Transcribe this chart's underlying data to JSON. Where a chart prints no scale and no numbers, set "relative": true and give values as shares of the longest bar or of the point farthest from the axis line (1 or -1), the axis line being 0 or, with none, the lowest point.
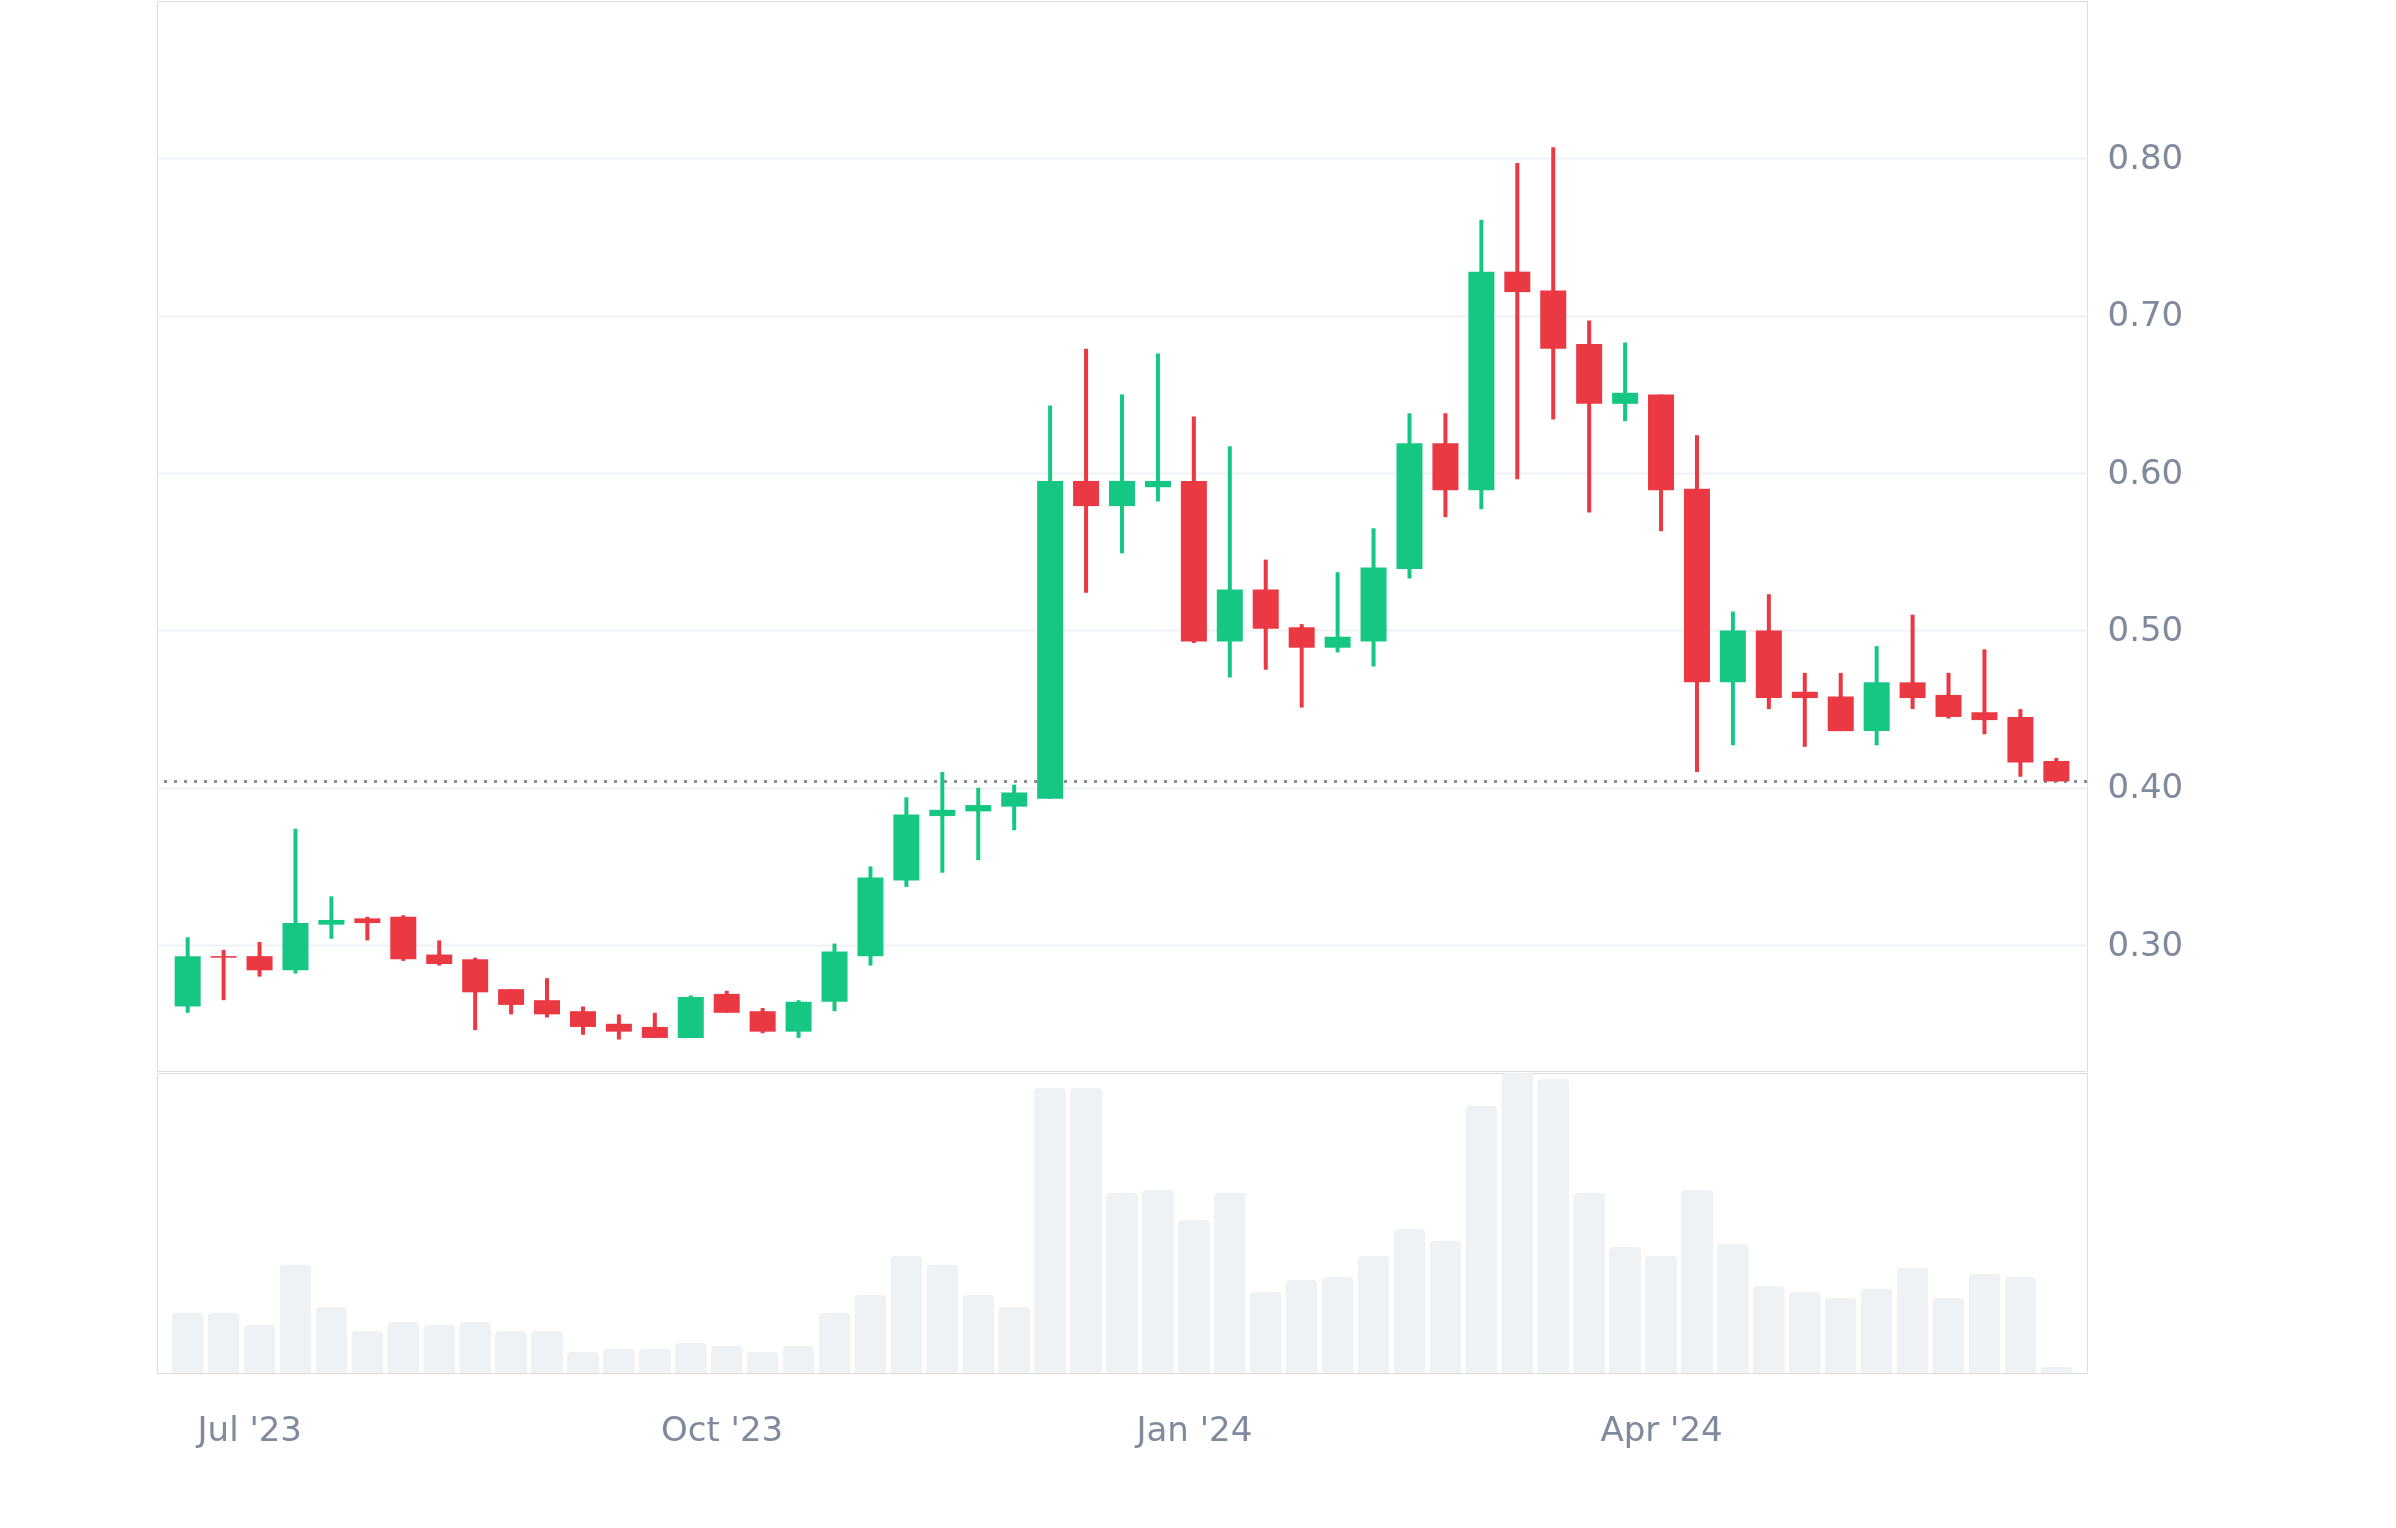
{
  "chart_data": [
    {
      "type": "candlestick",
      "x": [
        "2023-06-19",
        "2023-06-26",
        "2023-07-03",
        "2023-07-10",
        "2023-07-17",
        "2023-07-24",
        "2023-07-31",
        "2023-08-07",
        "2023-08-14",
        "2023-08-21",
        "2023-08-28",
        "2023-09-04",
        "2023-09-11",
        "2023-09-18",
        "2023-09-25",
        "2023-10-02",
        "2023-10-09",
        "2023-10-16",
        "2023-10-23",
        "2023-10-30",
        "2023-11-06",
        "2023-11-13",
        "2023-11-20",
        "2023-11-27",
        "2023-12-04",
        "2023-12-11",
        "2023-12-18",
        "2023-12-25",
        "2024-01-01",
        "2024-01-08",
        "2024-01-15",
        "2024-01-22",
        "2024-01-29",
        "2024-02-05",
        "2024-02-12",
        "2024-02-19",
        "2024-02-26",
        "2024-03-04",
        "2024-03-11",
        "2024-03-18",
        "2024-03-25",
        "2024-04-01",
        "2024-04-08",
        "2024-04-15",
        "2024-04-22",
        "2024-04-29",
        "2024-05-06",
        "2024-05-13",
        "2024-05-20",
        "2024-05-27",
        "2024-06-03",
        "2024-06-10",
        "2024-06-17"
      ],
      "ohlc": [
        [
          0.261,
          0.305,
          0.257,
          0.293
        ],
        [
          0.293,
          0.297,
          0.265,
          0.292
        ],
        [
          0.293,
          0.302,
          0.28,
          0.284
        ],
        [
          0.284,
          0.374,
          0.282,
          0.314
        ],
        [
          0.313,
          0.331,
          0.304,
          0.316
        ],
        [
          0.317,
          0.318,
          0.303,
          0.314
        ],
        [
          0.318,
          0.319,
          0.29,
          0.291
        ],
        [
          0.294,
          0.303,
          0.287,
          0.288
        ],
        [
          0.291,
          0.292,
          0.246,
          0.27
        ],
        [
          0.272,
          0.272,
          0.256,
          0.262
        ],
        [
          0.265,
          0.279,
          0.254,
          0.256
        ],
        [
          0.258,
          0.261,
          0.243,
          0.248
        ],
        [
          0.25,
          0.256,
          0.24,
          0.245
        ],
        [
          0.248,
          0.257,
          0.241,
          0.241
        ],
        [
          0.241,
          0.268,
          0.241,
          0.267
        ],
        [
          0.269,
          0.271,
          0.257,
          0.257
        ],
        [
          0.258,
          0.26,
          0.244,
          0.245
        ],
        [
          0.245,
          0.265,
          0.241,
          0.264
        ],
        [
          0.264,
          0.301,
          0.258,
          0.296
        ],
        [
          0.293,
          0.35,
          0.287,
          0.343
        ],
        [
          0.341,
          0.394,
          0.337,
          0.383
        ],
        [
          0.382,
          0.41,
          0.346,
          0.386
        ],
        [
          0.385,
          0.4,
          0.354,
          0.389
        ],
        [
          0.388,
          0.402,
          0.373,
          0.397
        ],
        [
          0.393,
          0.643,
          0.393,
          0.595
        ],
        [
          0.595,
          0.679,
          0.524,
          0.579
        ],
        [
          0.579,
          0.65,
          0.549,
          0.595
        ],
        [
          0.591,
          0.676,
          0.582,
          0.595
        ],
        [
          0.595,
          0.636,
          0.492,
          0.493
        ],
        [
          0.493,
          0.617,
          0.47,
          0.526
        ],
        [
          0.526,
          0.545,
          0.475,
          0.501
        ],
        [
          0.502,
          0.504,
          0.451,
          0.489
        ],
        [
          0.489,
          0.537,
          0.486,
          0.496
        ],
        [
          0.493,
          0.565,
          0.477,
          0.54
        ],
        [
          0.539,
          0.638,
          0.533,
          0.619
        ],
        [
          0.619,
          0.638,
          0.572,
          0.589
        ],
        [
          0.589,
          0.761,
          0.577,
          0.728
        ],
        [
          0.728,
          0.797,
          0.596,
          0.715
        ],
        [
          0.716,
          0.807,
          0.634,
          0.679
        ],
        [
          0.682,
          0.697,
          0.575,
          0.644
        ],
        [
          0.644,
          0.683,
          0.633,
          0.651
        ],
        [
          0.65,
          0.65,
          0.563,
          0.589
        ],
        [
          0.59,
          0.624,
          0.41,
          0.467
        ],
        [
          0.467,
          0.512,
          0.427,
          0.5
        ],
        [
          0.5,
          0.523,
          0.45,
          0.457
        ],
        [
          0.461,
          0.473,
          0.426,
          0.457
        ],
        [
          0.458,
          0.473,
          0.436,
          0.436
        ],
        [
          0.436,
          0.49,
          0.427,
          0.467
        ],
        [
          0.467,
          0.51,
          0.45,
          0.457
        ],
        [
          0.459,
          0.473,
          0.444,
          0.445
        ],
        [
          0.448,
          0.488,
          0.434,
          0.443
        ],
        [
          0.445,
          0.45,
          0.407,
          0.416
        ],
        [
          0.417,
          0.419,
          0.404,
          0.404
        ]
      ],
      "colors": [
        "#16c784",
        "#ea3943",
        "#ea3943",
        "#16c784",
        "#16c784",
        "#ea3943",
        "#ea3943",
        "#ea3943",
        "#ea3943",
        "#ea3943",
        "#ea3943",
        "#ea3943",
        "#ea3943",
        "#ea3943",
        "#16c784",
        "#ea3943",
        "#ea3943",
        "#16c784",
        "#16c784",
        "#16c784",
        "#16c784",
        "#16c784",
        "#16c784",
        "#16c784",
        "#16c784",
        "#ea3943",
        "#16c784",
        "#16c784",
        "#ea3943",
        "#16c784",
        "#ea3943",
        "#ea3943",
        "#16c784",
        "#16c784",
        "#16c784",
        "#ea3943",
        "#16c784",
        "#ea3943",
        "#ea3943",
        "#ea3943",
        "#16c784",
        "#ea3943",
        "#ea3943",
        "#16c784",
        "#ea3943",
        "#ea3943",
        "#ea3943",
        "#16c784",
        "#ea3943",
        "#ea3943",
        "#ea3943",
        "#ea3943",
        "#ea3943"
      ],
      "xlim": [
        "2023-06-14",
        "2024-06-22"
      ],
      "ylim": [
        0.22,
        0.9
      ],
      "yticks": [
        {
          "value": 0.3,
          "label": "0.30"
        },
        {
          "value": 0.4,
          "label": "0.40"
        },
        {
          "value": 0.5,
          "label": "0.50"
        },
        {
          "value": 0.6,
          "label": "0.60"
        },
        {
          "value": 0.7,
          "label": "0.70"
        },
        {
          "value": 0.8,
          "label": "0.80"
        }
      ],
      "tick_labels": "y",
      "grid": "y",
      "ref_lines": [
        {
          "axis": "y",
          "value": 0.404,
          "color": "#8a8f98",
          "line_style": "dotted"
        }
      ]
    },
    {
      "type": "bar",
      "relative": true,
      "color": "#eff2f5",
      "x": [
        "2023-06-19",
        "2023-06-26",
        "2023-07-03",
        "2023-07-10",
        "2023-07-17",
        "2023-07-24",
        "2023-07-31",
        "2023-08-07",
        "2023-08-14",
        "2023-08-21",
        "2023-08-28",
        "2023-09-04",
        "2023-09-11",
        "2023-09-18",
        "2023-09-25",
        "2023-10-02",
        "2023-10-09",
        "2023-10-16",
        "2023-10-23",
        "2023-10-30",
        "2023-11-06",
        "2023-11-13",
        "2023-11-20",
        "2023-11-27",
        "2023-12-04",
        "2023-12-11",
        "2023-12-18",
        "2023-12-25",
        "2024-01-01",
        "2024-01-08",
        "2024-01-15",
        "2024-01-22",
        "2024-01-29",
        "2024-02-05",
        "2024-02-12",
        "2024-02-19",
        "2024-02-26",
        "2024-03-04",
        "2024-03-11",
        "2024-03-18",
        "2024-03-25",
        "2024-04-01",
        "2024-04-08",
        "2024-04-15",
        "2024-04-22",
        "2024-04-29",
        "2024-05-06",
        "2024-05-13",
        "2024-05-20",
        "2024-05-27",
        "2024-06-03",
        "2024-06-10",
        "2024-06-17"
      ],
      "values": [
        0.2,
        0.2,
        0.16,
        0.36,
        0.22,
        0.14,
        0.17,
        0.16,
        0.17,
        0.14,
        0.14,
        0.07,
        0.08,
        0.08,
        0.1,
        0.09,
        0.07,
        0.09,
        0.2,
        0.26,
        0.39,
        0.36,
        0.26,
        0.22,
        0.95,
        0.95,
        0.6,
        0.61,
        0.51,
        0.6,
        0.27,
        0.31,
        0.32,
        0.39,
        0.48,
        0.44,
        0.89,
        1.0,
        0.98,
        0.6,
        0.42,
        0.39,
        0.61,
        0.43,
        0.29,
        0.27,
        0.25,
        0.28,
        0.35,
        0.25,
        0.33,
        0.32,
        0.02
      ],
      "xlim": [
        "2023-06-14",
        "2024-06-22"
      ],
      "xticks": [
        {
          "value": "2023-07-01",
          "label": "Jul '23"
        },
        {
          "value": "2023-10-01",
          "label": "Oct '23"
        },
        {
          "value": "2024-01-01",
          "label": "Jan '24"
        },
        {
          "value": "2024-04-01",
          "label": "Apr '24"
        }
      ],
      "tick_labels": "x"
    }
  ]
}
